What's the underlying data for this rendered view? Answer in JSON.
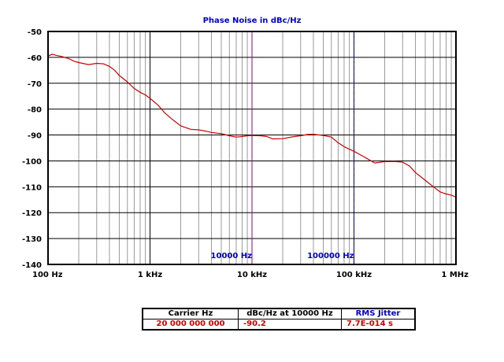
{
  "chart_data": {
    "type": "line",
    "title": "Phase Noise in dBc/Hz",
    "x_scale": "log",
    "xlim": [
      100,
      1000000
    ],
    "ylim": [
      -140,
      -50
    ],
    "x_ticks": [
      {
        "value": 100,
        "label": "100 Hz"
      },
      {
        "value": 1000,
        "label": "1 kHz"
      },
      {
        "value": 10000,
        "label": "10 kHz"
      },
      {
        "value": 100000,
        "label": "100 kHz"
      },
      {
        "value": 1000000,
        "label": "1 MHz"
      }
    ],
    "y_ticks": [
      -50,
      -60,
      -70,
      -80,
      -90,
      -100,
      -110,
      -120,
      -130,
      -140
    ],
    "grid": true,
    "line_color": "#cc0000",
    "markers": [
      {
        "x": 10000,
        "label": "10000 Hz",
        "color": "#990099",
        "style": "solid"
      },
      {
        "x": 100000,
        "label": "100000 Hz",
        "color": "#0000cc",
        "style": "dashed"
      }
    ],
    "series": [
      {
        "x": [
          100,
          110,
          120,
          140,
          160,
          180,
          200,
          250,
          300,
          350,
          400,
          450,
          500,
          600,
          700,
          800,
          900,
          1000,
          1200,
          1400,
          1600,
          2000,
          2500,
          3000,
          3500,
          4000,
          5000,
          6000,
          7000,
          8000,
          9000,
          10000,
          12000,
          14000,
          16000,
          20000,
          25000,
          30000,
          35000,
          40000,
          50000,
          60000,
          70000,
          80000,
          90000,
          100000,
          120000,
          140000,
          160000,
          200000,
          250000,
          300000,
          350000,
          400000,
          500000,
          600000,
          700000,
          800000,
          900000,
          1000000
        ],
        "y": [
          -59.5,
          -58.8,
          -59.2,
          -59.8,
          -60.5,
          -61.5,
          -62,
          -62.8,
          -62.3,
          -62.5,
          -63.5,
          -65,
          -67,
          -69.5,
          -72,
          -73.5,
          -74.5,
          -75.8,
          -78.5,
          -81.5,
          -83.5,
          -86.5,
          -87.8,
          -88,
          -88.5,
          -89,
          -89.5,
          -90.3,
          -90.8,
          -90.6,
          -90.3,
          -90.2,
          -90.3,
          -90.6,
          -91.5,
          -91.4,
          -90.7,
          -90.3,
          -89.8,
          -89.7,
          -90.2,
          -90.8,
          -93,
          -94.5,
          -95.5,
          -96.3,
          -98,
          -99.5,
          -100.8,
          -100.3,
          -100.2,
          -100.5,
          -102,
          -104.5,
          -107.5,
          -110,
          -112,
          -112.8,
          -113.2,
          -114
        ]
      }
    ]
  },
  "summary_table": {
    "headers": [
      "Carrier Hz",
      "dBc/Hz at 10000 Hz",
      "RMS Jitter"
    ],
    "values": [
      "20 000 000 000",
      "-90.2",
      "7.7E-014 s"
    ]
  }
}
